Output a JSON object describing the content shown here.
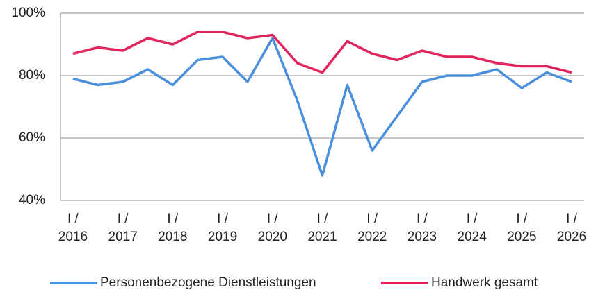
{
  "chart_data": {
    "type": "line",
    "categories": [
      "I /\n2016",
      null,
      "I /\n2017",
      null,
      "I /\n2018",
      null,
      "I /\n2019",
      null,
      "I /\n2020",
      null,
      "I /\n2021",
      null,
      "I /\n2022",
      null,
      "I /\n2023",
      null,
      "I /\n2024",
      null,
      "I /\n2025",
      null,
      "I /\n2026"
    ],
    "series": [
      {
        "name": "Personenbezogene Dienstleistungen",
        "color": "#4a8fdb",
        "values": [
          79,
          77,
          78,
          82,
          77,
          85,
          86,
          78,
          92,
          72,
          48,
          77,
          56,
          67,
          78,
          80,
          80,
          82,
          76,
          81,
          78
        ]
      },
      {
        "name": "Handwerk gesamt",
        "color": "#e2245c",
        "values": [
          87,
          89,
          88,
          92,
          90,
          94,
          94,
          92,
          93,
          84,
          81,
          91,
          87,
          85,
          88,
          86,
          86,
          84,
          83,
          83,
          81
        ]
      }
    ],
    "ylim": [
      40,
      100
    ],
    "yticks": [
      {
        "value": 40,
        "label": "40%"
      },
      {
        "value": 60,
        "label": "60%"
      },
      {
        "value": 80,
        "label": "80%"
      },
      {
        "value": 100,
        "label": "100%"
      }
    ],
    "grid": true,
    "legend": "bottom"
  }
}
